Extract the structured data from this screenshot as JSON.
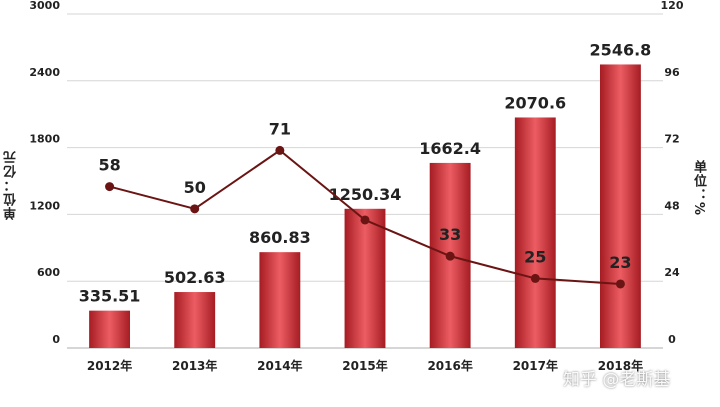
{
  "chart_data": {
    "type": "bar",
    "categories": [
      "2012年",
      "2013年",
      "2014年",
      "2015年",
      "2016年",
      "2017年",
      "2018年"
    ],
    "series": [
      {
        "values": [
          335.51,
          502.63,
          860.83,
          1250.34,
          1662.4,
          2070.6,
          2546.8
        ],
        "labels": [
          "335.51",
          "502.63",
          "860.83",
          "1250.34",
          "1662.4",
          "2070.6",
          "2546.8"
        ]
      },
      {
        "type": "line",
        "axis": "right",
        "values": [
          58,
          50,
          71,
          46,
          33,
          25,
          23
        ],
        "labels": [
          "58",
          "50",
          "71",
          "",
          "33",
          "25",
          "23"
        ]
      }
    ],
    "ylabel": "单位：亿元",
    "y2label": "单位：%",
    "ylim": [
      0,
      3000
    ],
    "yticks": [
      "0",
      "600",
      "1200",
      "1800",
      "2400",
      "3000"
    ],
    "y2lim": [
      0,
      120
    ],
    "y2ticks": [
      "0",
      "24",
      "48",
      "72",
      "96",
      "120"
    ],
    "grid": true,
    "colors": {
      "bar": "#c8262c",
      "bar_light": "#e8575c",
      "line": "#6b1414",
      "grid": "#d6d6d6"
    }
  },
  "watermark": "知乎 @老斯基"
}
